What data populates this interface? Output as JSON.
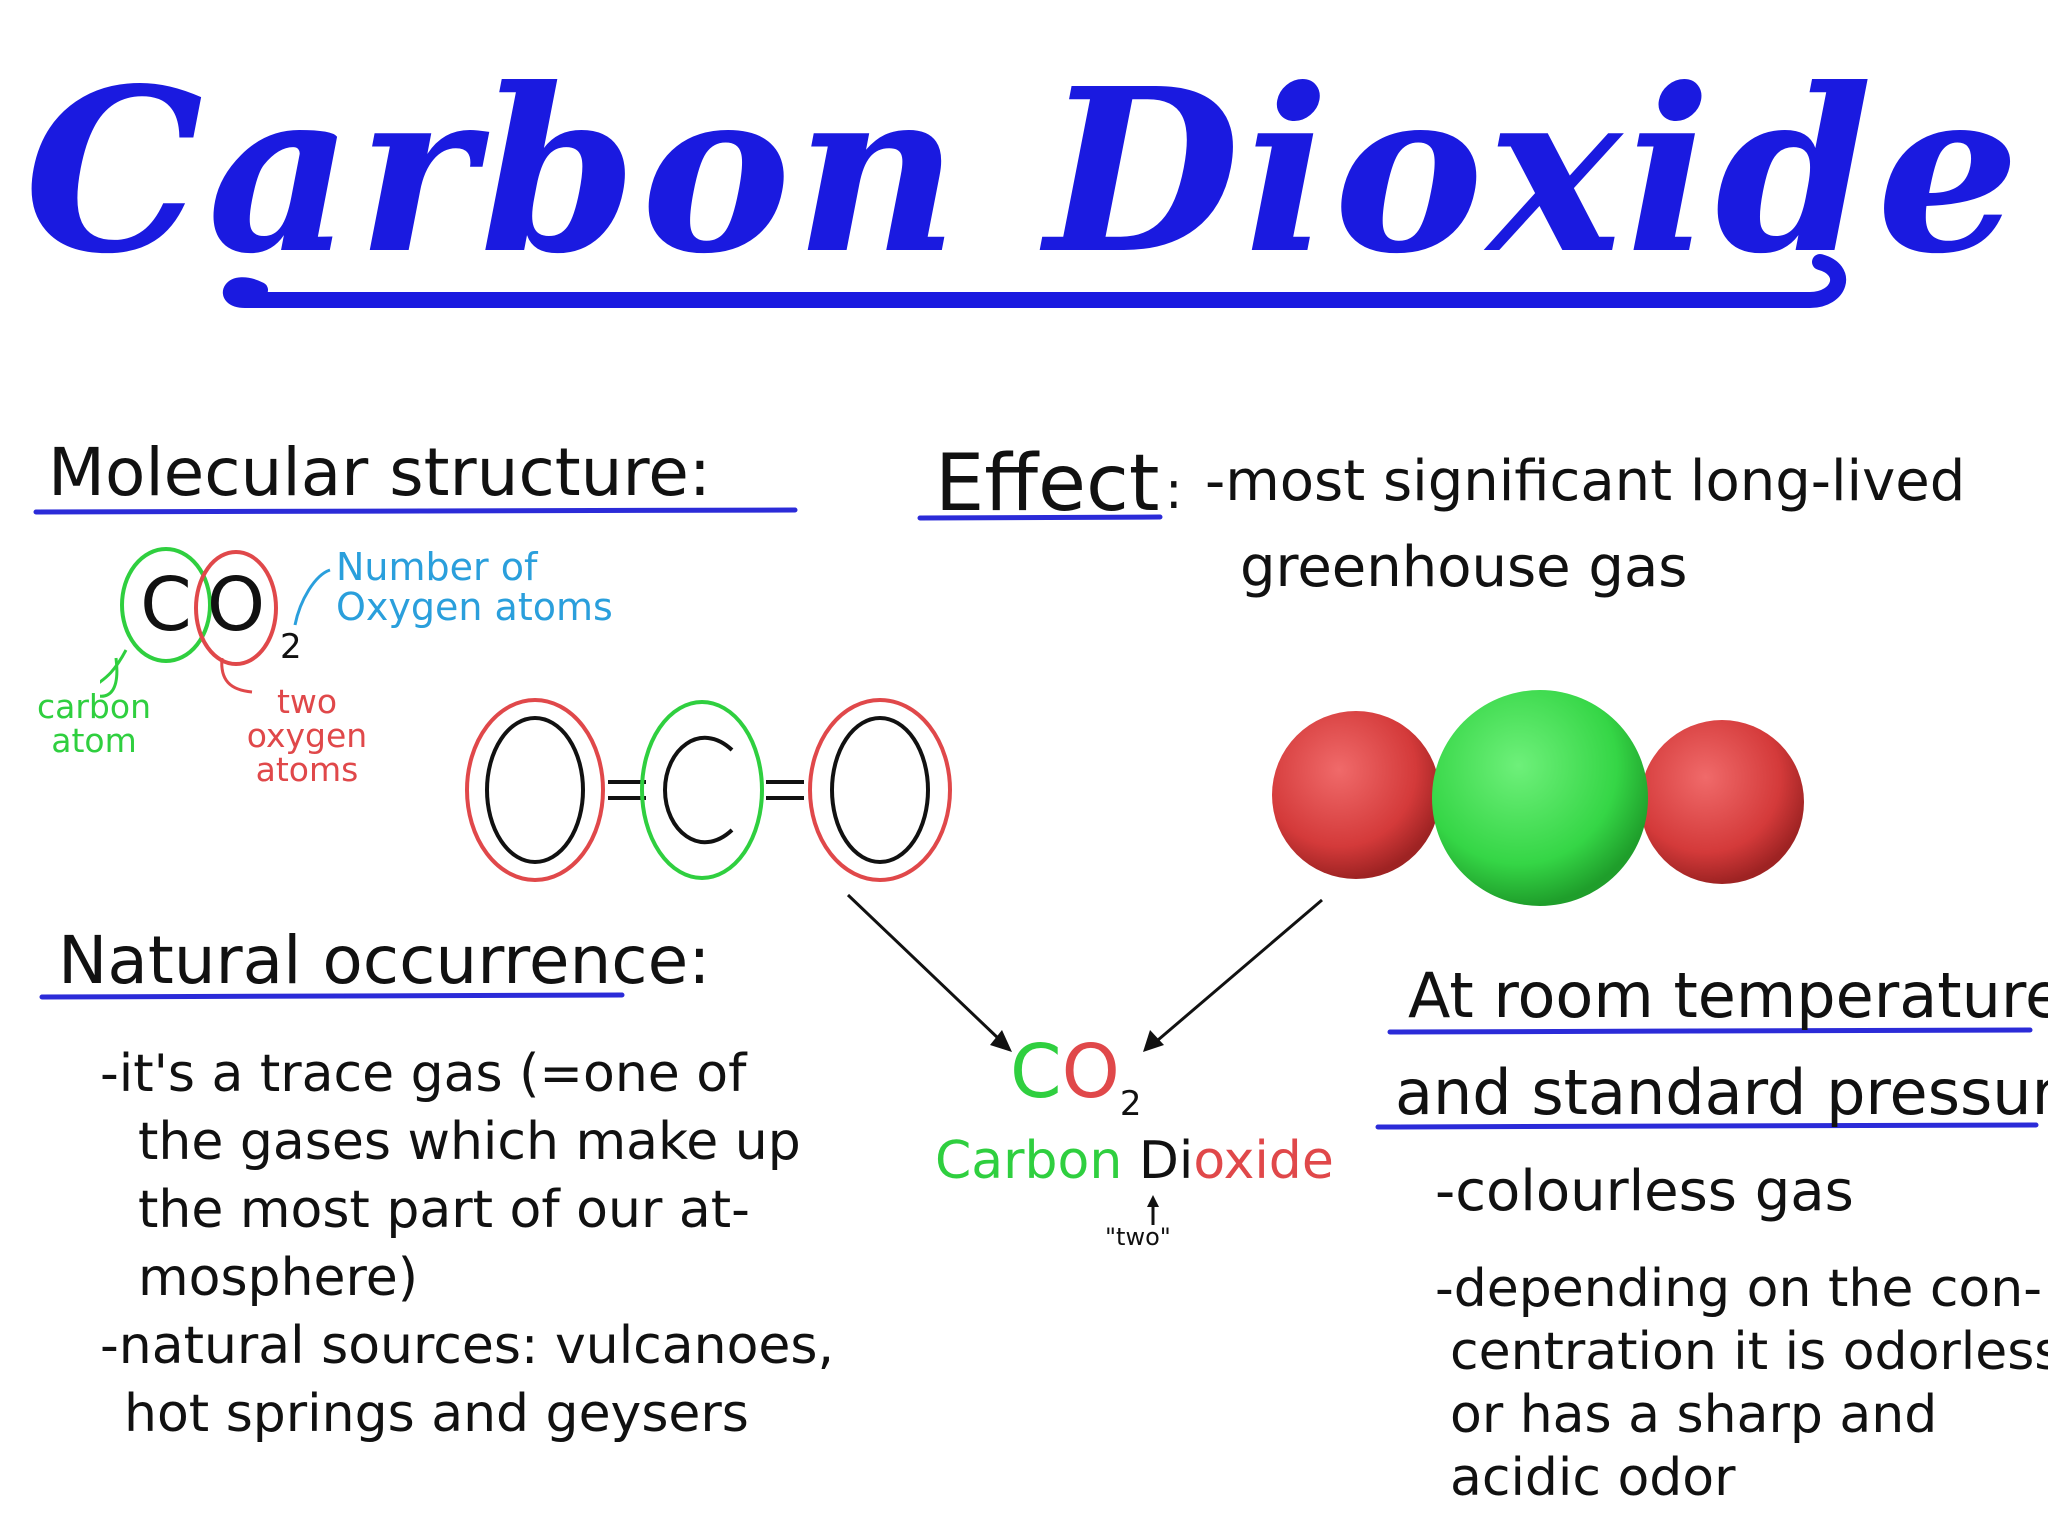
{
  "title": "Carbon Dioxide",
  "molecular_structure": {
    "heading": "Molecular structure:",
    "formula_c": "C",
    "formula_o": "O",
    "formula_sub": "2",
    "annotation_number": "Number of Oxygen atoms",
    "annotation_carbon": "carbon atom",
    "annotation_oxygen": "two oxygen atoms",
    "structural_left": "O",
    "structural_center": "C",
    "structural_right": "O",
    "bond": "="
  },
  "effect": {
    "heading": "Effect",
    "colon": ":",
    "text_line1": "-most significant long-lived",
    "text_line2": "greenhouse gas"
  },
  "natural_occurrence": {
    "heading": "Natural occurrence:",
    "line1": "-it's a trace gas (=one of",
    "line2": "the gases which make up",
    "line3": "the most part of our at-",
    "line4": "mosphere)",
    "line5": "-natural sources: vulcanoes,",
    "line6": "hot springs and geysers"
  },
  "center_label": {
    "formula_c": "C",
    "formula_o": "O",
    "formula_sub": "2",
    "name_carbon": "Carbon",
    "name_di": "Di",
    "name_oxide": "oxide",
    "note": "\"two\""
  },
  "room_temperature": {
    "heading_line1": "At room temperature",
    "heading_line2": "and standard pressure",
    "line1": "-colourless gas",
    "line2": "-depending on the con-",
    "line3": "centration it is odorless",
    "line4": "or has a sharp and",
    "line5": "acidic odor"
  },
  "colors": {
    "title_blue": "#1a1ae0",
    "underline_blue": "#2b2bd8",
    "carbon_green": "#2fcf3f",
    "oxygen_red": "#e0484a",
    "annotation_blue": "#2a9fdc"
  }
}
